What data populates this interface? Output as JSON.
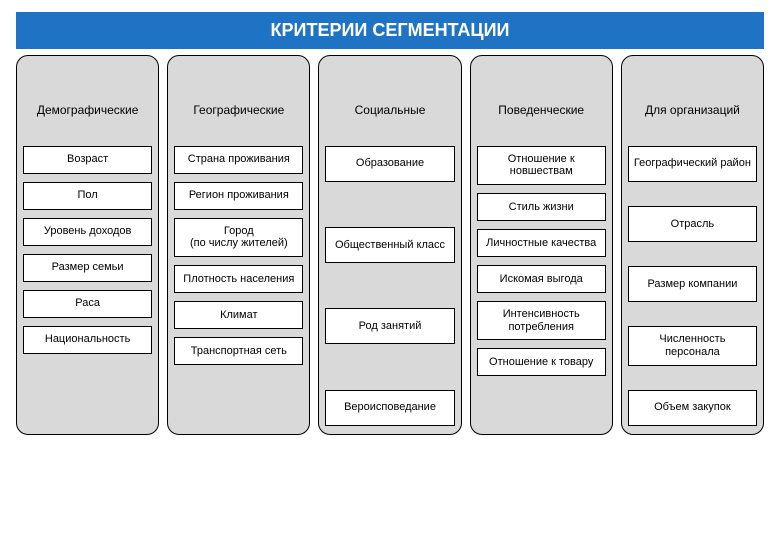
{
  "title": "КРИТЕРИИ СЕГМЕНТАЦИИ",
  "header_bg": "#1f73c4",
  "header_color": "#ffffff",
  "header_fontsize": 18,
  "col_bg": "#d9d9d9",
  "col_border": "#000000",
  "item_bg": "#ffffff",
  "item_border": "#000000",
  "col_header_fontsize": 12,
  "item_fontsize": 11,
  "columns": [
    {
      "label": "Демографические",
      "items": [
        "Возраст",
        "Пол",
        "Уровень доходов",
        "Размер семьи",
        "Раса",
        "Национальность"
      ]
    },
    {
      "label": "Географические",
      "items": [
        "Страна проживания",
        "Регион проживания",
        "Город\n(по числу жителей)",
        "Плотность населения",
        "Климат",
        "Транспортная сеть"
      ]
    },
    {
      "label": "Социальные",
      "items": [
        "Образование",
        "Общественный класс",
        "Род занятий",
        "Вероисповедание"
      ]
    },
    {
      "label": "Поведенческие",
      "items": [
        "Отношение к новшествам",
        "Стиль жизни",
        "Личностные качества",
        "Искомая выгода",
        "Интенсивность потребления",
        "Отношение к товару"
      ]
    },
    {
      "label": "Для  организаций",
      "items": [
        "Географический район",
        "Отрасль",
        "Размер компании",
        "Численность персонала",
        "Объем закупок"
      ]
    }
  ]
}
